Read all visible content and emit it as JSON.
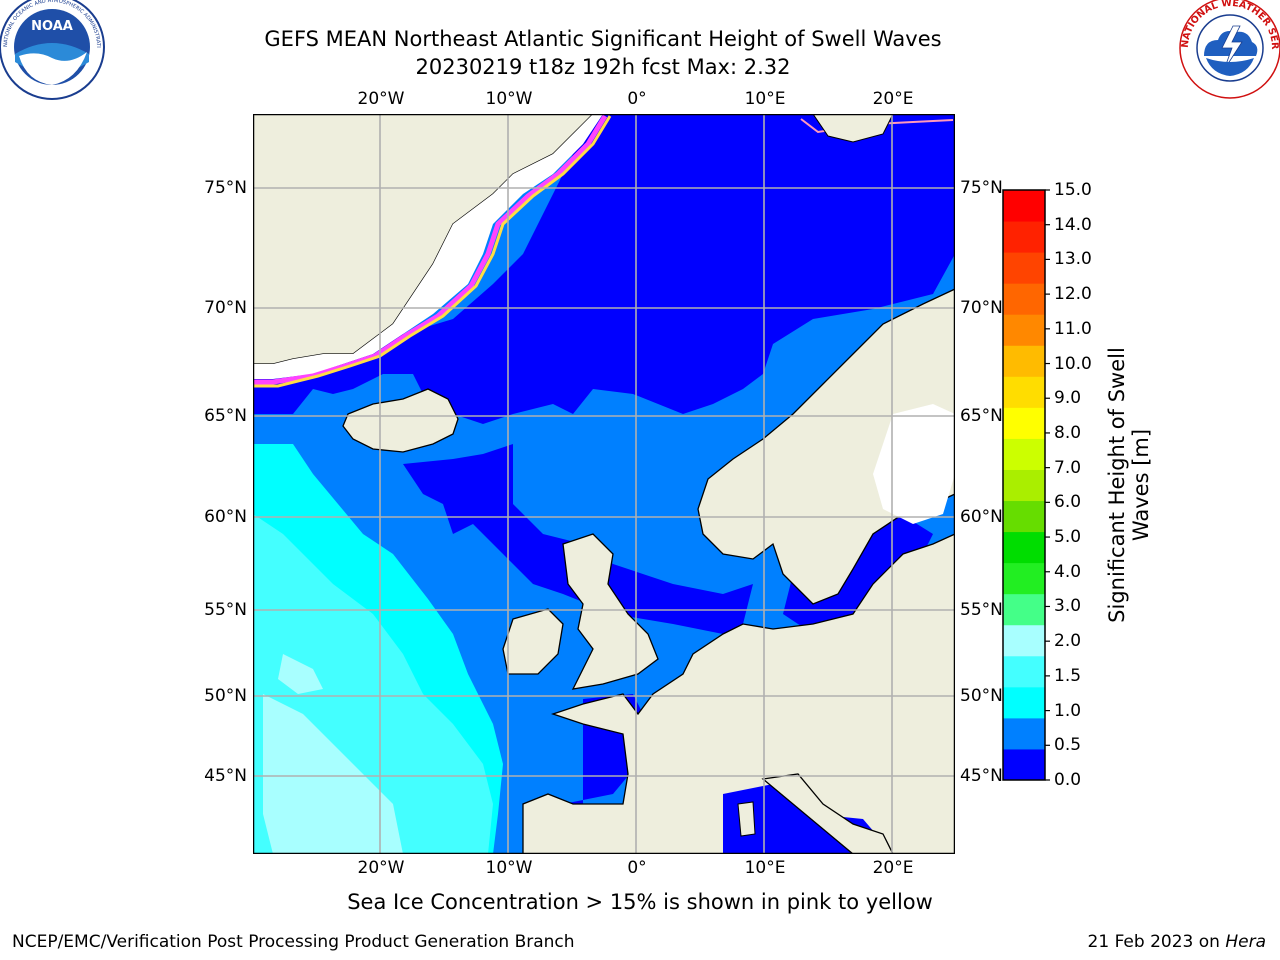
{
  "title": {
    "line1": "GEFS MEAN Northeast Atlantic Significant Height of Swell Waves",
    "line2": "20230219 t18z 192h fcst   Max: 2.32"
  },
  "map": {
    "lon_labels": [
      "20°W",
      "10°W",
      "0°",
      "10°E",
      "20°E"
    ],
    "lat_labels": [
      "75°N",
      "70°N",
      "65°N",
      "60°N",
      "55°N",
      "50°N",
      "45°N"
    ],
    "colors": {
      "land": "#eeeedd",
      "ice_free": "#ffffff",
      "swell_0_05": "#0000ff",
      "swell_05_1": "#0080ff",
      "swell_1_15": "#00ffff",
      "swell_15_2": "#44ffff",
      "swell_2_3": "#a8ffff",
      "sea_ice": [
        "#ff44ff",
        "#ff99bb",
        "#ffdd44"
      ],
      "grid": "#b0b0b0"
    }
  },
  "colorbar": {
    "title": "Significant Height of Swell Waves [m]",
    "tick_labels": [
      "15.0",
      "14.0",
      "13.0",
      "12.0",
      "11.0",
      "10.0",
      "9.0",
      "8.0",
      "7.0",
      "6.0",
      "5.0",
      "4.0",
      "3.0",
      "2.0",
      "1.5",
      "1.0",
      "0.5",
      "0.0"
    ],
    "colors_bottom_to_top": [
      "#0000ff",
      "#0080ff",
      "#00ffff",
      "#44ffff",
      "#a8ffff",
      "#44ff88",
      "#22ee22",
      "#00dd00",
      "#66dd00",
      "#aaee00",
      "#ccff00",
      "#ffff00",
      "#ffdd00",
      "#ffbb00",
      "#ff8800",
      "#ff6600",
      "#ff4400",
      "#ff2200",
      "#ff0000"
    ]
  },
  "footnote": "Sea Ice Concentration > 15% is shown in pink to yellow",
  "credit": "NCEP/EMC/Verification Post Processing Product Generation Branch",
  "datestamp": {
    "prefix": "21 Feb 2023 on ",
    "host": "Hera"
  },
  "logos": {
    "noaa": {
      "center": "NOAA",
      "ring": "NATIONAL OCEANIC AND ATMOSPHERIC ADMINISTRATION · U.S. DEPARTMENT OF COMMERCE"
    },
    "nws": {
      "ring": "NATIONAL WEATHER SERVICE"
    }
  }
}
